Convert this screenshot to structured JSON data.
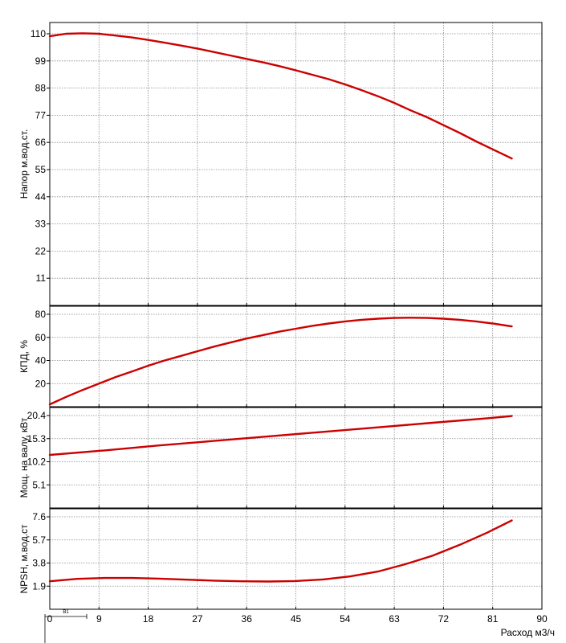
{
  "chart_data": [
    {
      "type": "line",
      "ylabel": "Напор м.вод.ст.",
      "ylim": [
        0,
        110
      ],
      "yticks": [
        "11",
        "22",
        "33",
        "44",
        "55",
        "66",
        "77",
        "88",
        "99",
        "110"
      ],
      "xlim": [
        0,
        90
      ],
      "grid": true,
      "color": "#cc0000",
      "series": [
        {
          "x": [
            0,
            3,
            6,
            9,
            12,
            15,
            18,
            21,
            24,
            27,
            30,
            33,
            36,
            39,
            42,
            45,
            48,
            51,
            54,
            57,
            60,
            63,
            66,
            69,
            72,
            75,
            78,
            81,
            84.5
          ],
          "y": [
            109,
            110,
            110.2,
            110,
            109.3,
            108.5,
            107.5,
            106.4,
            105.2,
            104,
            102.6,
            101.2,
            99.8,
            98.4,
            96.9,
            95.2,
            93.4,
            91.6,
            89.5,
            87.2,
            84.7,
            82,
            79,
            76.2,
            73,
            69.8,
            66.4,
            63.2,
            59.5
          ]
        }
      ]
    },
    {
      "type": "line",
      "ylabel": "КПД, %",
      "ylim": [
        0,
        80
      ],
      "yticks": [
        "20",
        "40",
        "60",
        "80"
      ],
      "xlim": [
        0,
        90
      ],
      "grid": true,
      "color": "#cc0000",
      "series": [
        {
          "x": [
            0,
            3,
            6,
            9,
            12,
            15,
            18,
            21,
            24,
            27,
            30,
            33,
            36,
            39,
            42,
            45,
            48,
            51,
            54,
            57,
            60,
            63,
            66,
            69,
            72,
            75,
            78,
            81,
            84.5
          ],
          "y": [
            2,
            8.5,
            14.5,
            20,
            25.5,
            30.5,
            35.5,
            40,
            44,
            48,
            52,
            55.5,
            59,
            62,
            65,
            67.5,
            70,
            72,
            73.8,
            75.2,
            76.2,
            76.8,
            77,
            76.8,
            76.2,
            75.2,
            73.8,
            72,
            69.5
          ]
        }
      ]
    },
    {
      "type": "line",
      "ylabel": "Мощ. на валу, кВт",
      "ylim": [
        0,
        20.4
      ],
      "yticks": [
        "5.1",
        "10.2",
        "15.3",
        "20.4"
      ],
      "xlim": [
        0,
        90
      ],
      "grid": true,
      "color": "#cc0000",
      "series": [
        {
          "x": [
            0,
            10,
            20,
            30,
            40,
            50,
            60,
            70,
            80,
            84.5
          ],
          "y": [
            11.7,
            12.7,
            13.8,
            14.8,
            15.8,
            16.8,
            17.8,
            18.8,
            19.8,
            20.3
          ]
        }
      ]
    },
    {
      "type": "line",
      "ylabel": "NPSH, м.вод.ст",
      "ylim": [
        0,
        7.6
      ],
      "yticks": [
        "1.9",
        "3.8",
        "5.7",
        "7.6"
      ],
      "xlim": [
        0,
        90
      ],
      "xticks": [
        "0",
        "9",
        "18",
        "27",
        "36",
        "45",
        "54",
        "63",
        "72",
        "81",
        "90"
      ],
      "xlabel": "Расход м3/ч",
      "grid": true,
      "color": "#cc0000",
      "series": [
        {
          "x": [
            0,
            5,
            10,
            15,
            20,
            25,
            30,
            35,
            40,
            45,
            50,
            55,
            60,
            65,
            70,
            75,
            80,
            84.5
          ],
          "y": [
            2.3,
            2.5,
            2.57,
            2.57,
            2.52,
            2.43,
            2.35,
            2.3,
            2.28,
            2.32,
            2.45,
            2.7,
            3.1,
            3.7,
            4.4,
            5.3,
            6.3,
            7.3
          ]
        }
      ]
    }
  ],
  "scale_bar": {
    "label": "B1"
  }
}
